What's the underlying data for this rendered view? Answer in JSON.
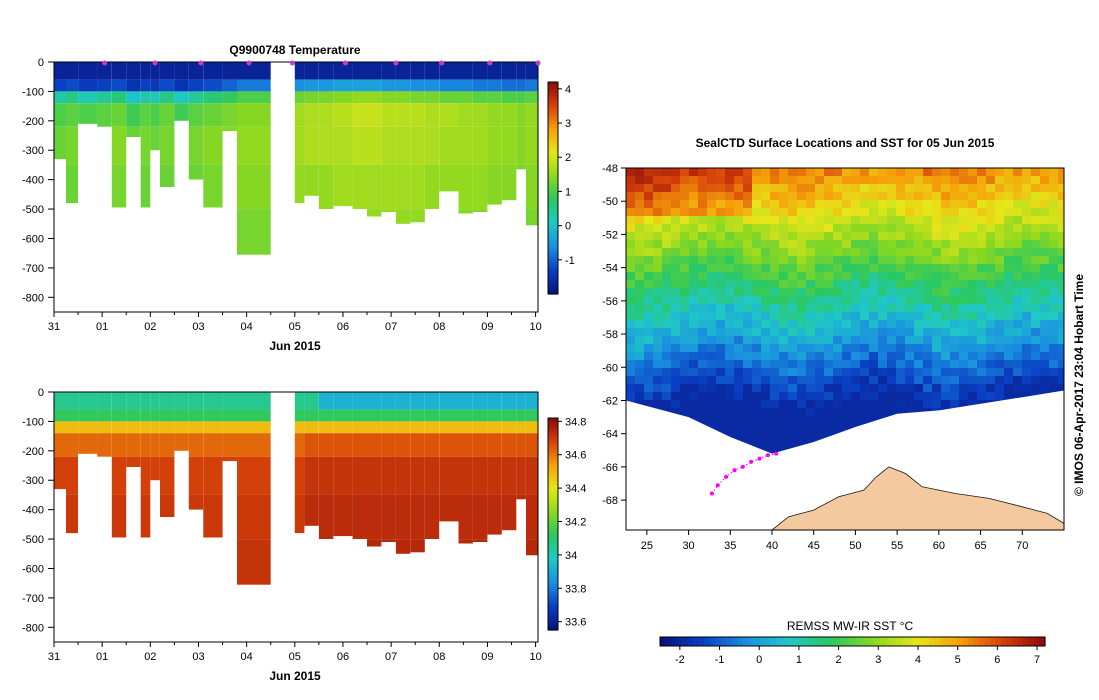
{
  "colors": {
    "land": "#f5c9a0",
    "ice": "#ffffff",
    "track": "#ff00ff",
    "profile_marker": "#c33cc3",
    "colormap": [
      "#08107a",
      "#0a3fc2",
      "#1a8ee0",
      "#20c8c8",
      "#2bc860",
      "#8bd820",
      "#e6e61a",
      "#f5a00a",
      "#d5400a",
      "#8a0a0a"
    ]
  },
  "chart_data": [
    {
      "id": "temperature",
      "type": "heatmap",
      "title": "Q9900748  Temperature",
      "xlabel": "Jun 2015",
      "ylabel": "",
      "x_ticks": [
        "31",
        "01",
        "02",
        "03",
        "04",
        "05",
        "06",
        "07",
        "08",
        "09",
        "10"
      ],
      "y_ticks": [
        "0",
        "-100",
        "-200",
        "-300",
        "-400",
        "-500",
        "-600",
        "-700",
        "-800"
      ],
      "ylim": [
        -850,
        0
      ],
      "xlim_days": [
        0,
        10.05
      ],
      "colorbar": {
        "range": [
          -2,
          4.2
        ],
        "ticks": [
          "4",
          "3",
          "2",
          "1",
          "0",
          "-1"
        ]
      },
      "gap_days": [
        4.5,
        5.0
      ],
      "profile_times_days": [
        1.05,
        2.1,
        3.05,
        4.05,
        4.95,
        6.05,
        7.1,
        8.05,
        9.05,
        10.05
      ],
      "profiles": [
        {
          "t": 0.0,
          "depth": 330,
          "T": [
            -1.7,
            -1.3,
            0.3,
            1.0,
            1.2,
            1.1,
            1.0
          ]
        },
        {
          "t": 0.25,
          "depth": 480,
          "T": [
            -1.7,
            -1.2,
            0.5,
            1.1,
            1.3,
            1.2,
            1.1
          ]
        },
        {
          "t": 0.5,
          "depth": 210,
          "T": [
            -1.7,
            -1.4,
            0.2,
            1.0,
            1.2,
            1.1,
            1.0
          ]
        },
        {
          "t": 0.9,
          "depth": 220,
          "T": [
            -1.7,
            -1.3,
            0.4,
            1.1,
            1.3,
            1.2,
            1.1
          ]
        },
        {
          "t": 1.2,
          "depth": 495,
          "T": [
            -1.7,
            -1.2,
            0.6,
            1.2,
            1.4,
            1.3,
            1.2
          ]
        },
        {
          "t": 1.5,
          "depth": 255,
          "T": [
            -1.7,
            -1.5,
            0.0,
            0.9,
            1.2,
            1.1,
            1.0
          ]
        },
        {
          "t": 1.8,
          "depth": 495,
          "T": [
            -1.7,
            -1.3,
            0.3,
            1.1,
            1.3,
            1.2,
            1.1
          ]
        },
        {
          "t": 2.0,
          "depth": 300,
          "T": [
            -1.7,
            -1.4,
            0.2,
            1.0,
            1.2,
            1.1,
            1.0
          ]
        },
        {
          "t": 2.2,
          "depth": 425,
          "T": [
            -1.7,
            -1.2,
            0.5,
            1.2,
            1.3,
            1.2,
            1.1
          ]
        },
        {
          "t": 2.5,
          "depth": 200,
          "T": [
            -1.7,
            -1.5,
            0.1,
            0.9,
            1.1,
            1.0,
            0.9
          ]
        },
        {
          "t": 2.8,
          "depth": 400,
          "T": [
            -1.7,
            -1.3,
            0.4,
            1.1,
            1.3,
            1.2,
            1.1
          ]
        },
        {
          "t": 3.1,
          "depth": 495,
          "T": [
            -1.7,
            -1.2,
            0.6,
            1.2,
            1.4,
            1.3,
            1.2
          ]
        },
        {
          "t": 3.5,
          "depth": 235,
          "T": [
            -1.7,
            -1.0,
            0.8,
            1.3,
            1.4,
            1.3,
            1.2
          ]
        },
        {
          "t": 3.8,
          "depth": 655,
          "T": [
            -1.7,
            -0.8,
            1.0,
            1.4,
            1.5,
            1.4,
            1.3
          ]
        },
        {
          "t": 5.0,
          "depth": 480,
          "T": [
            -1.7,
            -0.6,
            1.2,
            1.6,
            1.6,
            1.5,
            1.4
          ]
        },
        {
          "t": 5.2,
          "depth": 455,
          "T": [
            -1.7,
            -0.5,
            1.3,
            1.7,
            1.7,
            1.5,
            1.4
          ]
        },
        {
          "t": 5.5,
          "depth": 500,
          "T": [
            -1.7,
            -0.5,
            1.3,
            1.7,
            1.7,
            1.5,
            1.4
          ]
        },
        {
          "t": 5.8,
          "depth": 490,
          "T": [
            -1.7,
            -0.4,
            1.4,
            1.8,
            1.7,
            1.6,
            1.5
          ]
        },
        {
          "t": 6.2,
          "depth": 500,
          "T": [
            -1.7,
            -0.4,
            1.5,
            1.9,
            1.8,
            1.6,
            1.5
          ]
        },
        {
          "t": 6.5,
          "depth": 525,
          "T": [
            -1.7,
            -0.4,
            1.5,
            1.9,
            1.8,
            1.6,
            1.5
          ]
        },
        {
          "t": 6.8,
          "depth": 510,
          "T": [
            -1.7,
            -0.5,
            1.4,
            1.8,
            1.7,
            1.6,
            1.5
          ]
        },
        {
          "t": 7.1,
          "depth": 550,
          "T": [
            -1.7,
            -0.5,
            1.4,
            1.8,
            1.7,
            1.6,
            1.5
          ]
        },
        {
          "t": 7.4,
          "depth": 545,
          "T": [
            -1.7,
            -0.6,
            1.3,
            1.8,
            1.7,
            1.6,
            1.5
          ]
        },
        {
          "t": 7.7,
          "depth": 500,
          "T": [
            -1.7,
            -0.6,
            1.3,
            1.7,
            1.7,
            1.5,
            1.4
          ]
        },
        {
          "t": 8.0,
          "depth": 440,
          "T": [
            -1.7,
            -0.7,
            1.2,
            1.7,
            1.6,
            1.5,
            1.4
          ]
        },
        {
          "t": 8.4,
          "depth": 515,
          "T": [
            -1.7,
            -0.7,
            1.2,
            1.6,
            1.6,
            1.5,
            1.4
          ]
        },
        {
          "t": 8.7,
          "depth": 510,
          "T": [
            -1.7,
            -0.8,
            1.1,
            1.6,
            1.6,
            1.5,
            1.4
          ]
        },
        {
          "t": 9.0,
          "depth": 485,
          "T": [
            -1.7,
            -0.8,
            1.1,
            1.5,
            1.5,
            1.4,
            1.3
          ]
        },
        {
          "t": 9.3,
          "depth": 470,
          "T": [
            -1.7,
            -0.9,
            1.0,
            1.5,
            1.5,
            1.4,
            1.3
          ]
        },
        {
          "t": 9.6,
          "depth": 365,
          "T": [
            -1.7,
            -0.9,
            1.0,
            1.4,
            1.4,
            1.3,
            1.2
          ]
        },
        {
          "t": 9.8,
          "depth": 555,
          "T": [
            -1.7,
            -0.8,
            1.1,
            1.5,
            1.5,
            1.4,
            1.3
          ]
        }
      ]
    },
    {
      "id": "salinity",
      "type": "heatmap",
      "title": "",
      "xlabel": "Jun 2015",
      "ylabel": "",
      "x_ticks": [
        "31",
        "01",
        "02",
        "03",
        "04",
        "05",
        "06",
        "07",
        "08",
        "09",
        "10"
      ],
      "y_ticks": [
        "0",
        "-100",
        "-200",
        "-300",
        "-400",
        "-500",
        "-600",
        "-700",
        "-800"
      ],
      "ylim": [
        -850,
        0
      ],
      "colorbar": {
        "range": [
          33.55,
          34.82
        ],
        "ticks": [
          "34.8",
          "34.6",
          "34.4",
          "34.2",
          "34",
          "33.8",
          "33.6"
        ]
      },
      "salinity_levels": [
        34.05,
        34.12,
        34.48,
        34.62,
        34.68,
        34.7,
        34.71
      ],
      "salinity_levels_late_surface": 33.92
    },
    {
      "id": "sst_map",
      "type": "heatmap",
      "title": "SealCTD Surface Locations and SST for 05 Jun 2015",
      "xlabel": "",
      "ylabel": "",
      "x_ticks": [
        "25",
        "30",
        "35",
        "40",
        "45",
        "50",
        "55",
        "60",
        "65",
        "70"
      ],
      "y_ticks": [
        "-48",
        "-50",
        "-52",
        "-54",
        "-56",
        "-58",
        "-60",
        "-62",
        "-64",
        "-66",
        "-68"
      ],
      "xlim": [
        22.5,
        75
      ],
      "ylim": [
        -69.8,
        -48
      ],
      "colorbar": {
        "label": "REMSS MW-IR SST °C",
        "range": [
          -2.5,
          7.2
        ],
        "ticks": [
          "-2",
          "-1",
          "0",
          "1",
          "2",
          "3",
          "4",
          "5",
          "6",
          "7"
        ]
      },
      "ice_edge": [
        [
          22.5,
          -62.0
        ],
        [
          30,
          -63.0
        ],
        [
          35,
          -64.2
        ],
        [
          40,
          -65.2
        ],
        [
          45,
          -64.5
        ],
        [
          50,
          -63.6
        ],
        [
          55,
          -62.8
        ],
        [
          60,
          -62.6
        ],
        [
          65,
          -62.2
        ],
        [
          70,
          -61.8
        ],
        [
          75,
          -61.4
        ]
      ],
      "coastline": [
        [
          40,
          -69.8
        ],
        [
          42,
          -69.0
        ],
        [
          45,
          -68.6
        ],
        [
          48,
          -67.8
        ],
        [
          51,
          -67.4
        ],
        [
          52.5,
          -66.6
        ],
        [
          54,
          -66.0
        ],
        [
          56,
          -66.4
        ],
        [
          58,
          -67.2
        ],
        [
          62,
          -67.6
        ],
        [
          66,
          -67.9
        ],
        [
          70,
          -68.4
        ],
        [
          73,
          -68.8
        ],
        [
          75,
          -69.4
        ],
        [
          75,
          -69.8
        ]
      ],
      "track_points": [
        [
          32.8,
          -67.6
        ],
        [
          33.5,
          -67.1
        ],
        [
          34.5,
          -66.6
        ],
        [
          35.5,
          -66.2
        ],
        [
          36.5,
          -66.0
        ],
        [
          37.5,
          -65.7
        ],
        [
          38.5,
          -65.5
        ],
        [
          39.5,
          -65.3
        ],
        [
          40.5,
          -65.2
        ]
      ]
    }
  ],
  "credit": "© IMOS 06-Apr-2017 23:04 Hobart Time"
}
